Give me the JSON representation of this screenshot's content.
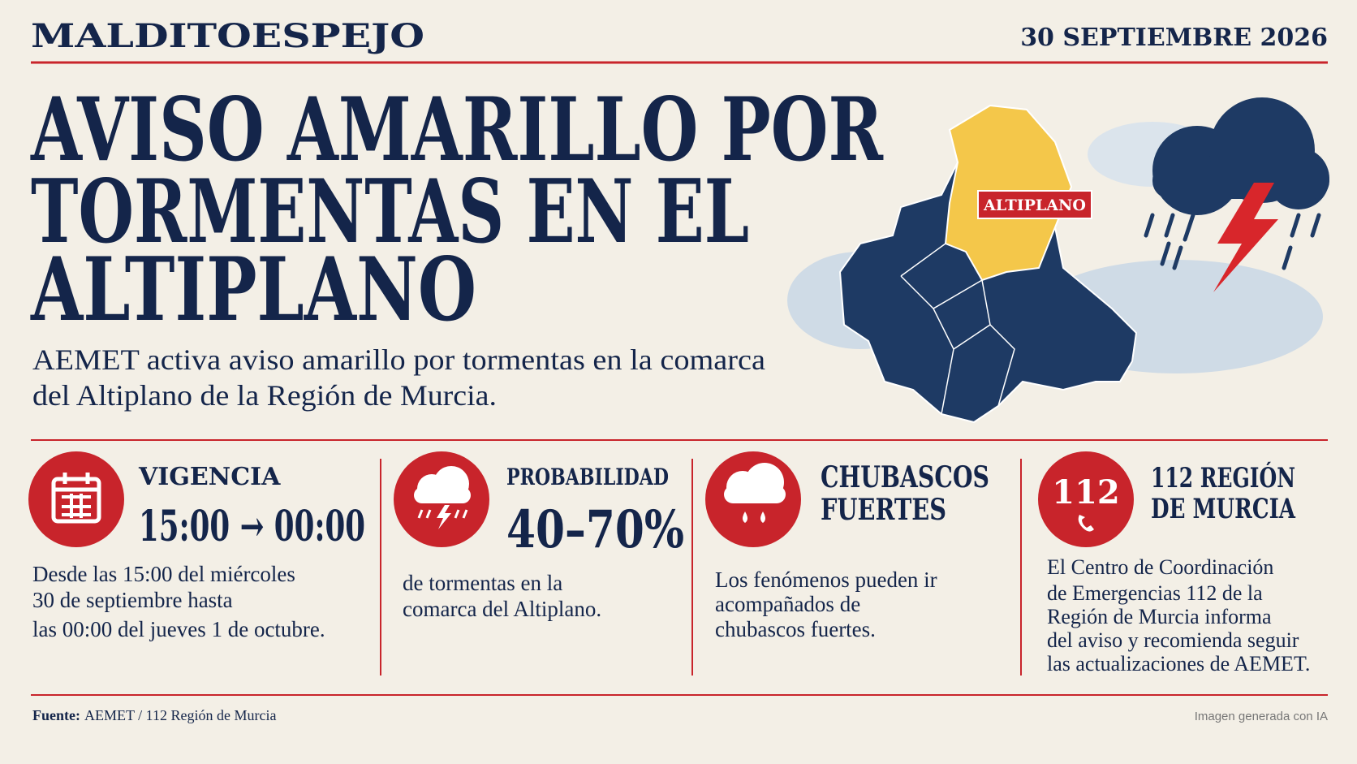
{
  "header": {
    "brand": "MALDITOESPEJO",
    "date": "30 SEPTIEMBRE 2026"
  },
  "headline": {
    "title_lines": [
      "AVISO AMARILLO POR",
      "TORMENTAS EN EL",
      "ALTIPLANO"
    ],
    "subtitle_lines": [
      "AEMET activa aviso amarillo por tormentas en la comarca",
      "del Altiplano de la Región de Murcia."
    ]
  },
  "map": {
    "label": "ALTIPLANO"
  },
  "cards": [
    {
      "title_lines": [
        "VIGENCIA"
      ],
      "big": "15:00 → 00:00",
      "body_lines": [
        "Desde las 15:00 del miércoles",
        "30 de septiembre hasta",
        "las 00:00 del jueves 1 de octubre."
      ]
    },
    {
      "title_lines": [
        "PROBABILIDAD"
      ],
      "big": "40–70%",
      "body_lines": [
        "de tormentas en la",
        "comarca del Altiplano."
      ]
    },
    {
      "title_lines": [
        "CHUBASCOS",
        "FUERTES"
      ],
      "body_lines": [
        "Los fenómenos pueden ir",
        "acompañados de",
        "chubascos fuertes."
      ]
    },
    {
      "icon_text": "112",
      "title_lines": [
        "112 REGIÓN",
        "DE MURCIA"
      ],
      "body_lines": [
        "El Centro de Coordinación",
        "de Emergencias 112 de la",
        "Región de Murcia informa",
        "del aviso y recomienda seguir",
        "las actualizaciones de AEMET."
      ]
    }
  ],
  "footer": {
    "source_label": "Fuente:",
    "source": "AEMET / 112 Región de Murcia",
    "note": "Imagen generada con IA"
  }
}
